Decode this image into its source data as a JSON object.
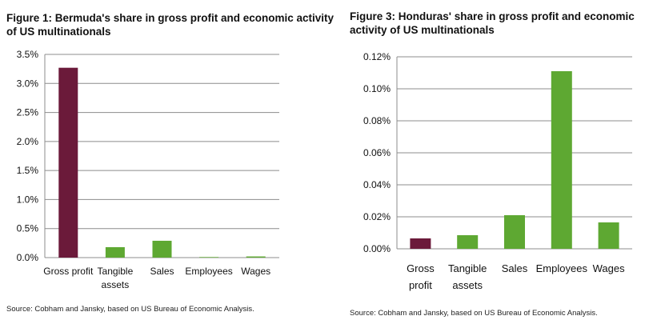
{
  "colors": {
    "highlight": "#6b1a3a",
    "default": "#5ea832",
    "grid": "#8c8c8c"
  },
  "figure1": {
    "title": "Figure 1: Bermuda's share in gross profit and economic activity of US multinationals",
    "source": "Source: Cobham and Jansky, based on US Bureau of Economic Analysis."
  },
  "figure3": {
    "title": "Figure 3: Honduras' share in gross profit and economic activity of US multinationals",
    "source": "Source: Cobham and Jansky, based on US Bureau of Economic Analysis."
  },
  "chart_data": [
    {
      "type": "bar",
      "title": "Figure 1: Bermuda's share in gross profit and economic activity of US multinationals",
      "categories": [
        [
          "Gross profit"
        ],
        [
          "Tangible",
          "assets"
        ],
        [
          "Sales"
        ],
        [
          "Employees"
        ],
        [
          "Wages"
        ]
      ],
      "values": [
        3.27,
        0.18,
        0.29,
        0.01,
        0.02
      ],
      "unit": "%",
      "ylim": [
        0,
        3.5
      ],
      "yticks": [
        "0.0%",
        "0.5%",
        "1.0%",
        "1.5%",
        "2.0%",
        "2.5%",
        "3.0%",
        "3.5%"
      ],
      "grid": true,
      "highlight_index": 0
    },
    {
      "type": "bar",
      "title": "Figure 3: Honduras' share in gross profit and economic activity of US multinationals",
      "categories": [
        [
          "Gross",
          "profit"
        ],
        [
          "Tangible",
          "assets"
        ],
        [
          "Sales"
        ],
        [
          "Employees"
        ],
        [
          "Wages"
        ]
      ],
      "values": [
        0.0065,
        0.0085,
        0.021,
        0.111,
        0.0165
      ],
      "unit": "%",
      "ylim": [
        0,
        0.12
      ],
      "yticks": [
        "0.00%",
        "0.02%",
        "0.04%",
        "0.06%",
        "0.08%",
        "0.10%",
        "0.12%"
      ],
      "grid": true,
      "highlight_index": 0
    }
  ]
}
